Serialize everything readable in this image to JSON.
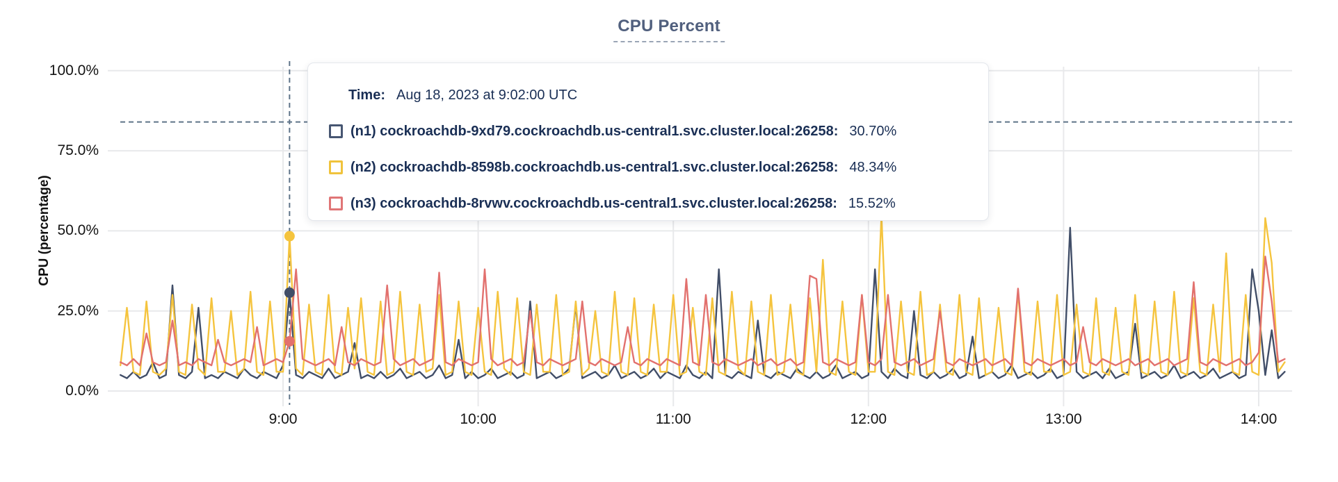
{
  "title": "CPU Percent",
  "chart_data": {
    "type": "line",
    "title": "CPU Percent",
    "xlabel": "",
    "ylabel": "CPU (percentage)",
    "ylim": [
      0,
      100
    ],
    "grid": true,
    "legend_position": "tooltip",
    "yticks": [
      {
        "label": "100.0%",
        "value": 100
      },
      {
        "label": "75.0%",
        "value": 75
      },
      {
        "label": "50.0%",
        "value": 50
      },
      {
        "label": "25.0%",
        "value": 25
      },
      {
        "label": "0.0%",
        "value": 0
      }
    ],
    "xticks": [
      {
        "label": "9:00",
        "t": 0
      },
      {
        "label": "10:00",
        "t": 60
      },
      {
        "label": "11:00",
        "t": 120
      },
      {
        "label": "12:00",
        "t": 180
      },
      {
        "label": "13:00",
        "t": 240
      },
      {
        "label": "14:00",
        "t": 300
      }
    ],
    "x_unit": "minutes from 9:00",
    "t_start": -50,
    "t_step": 2,
    "series": [
      {
        "id": "n1",
        "name": "(n1) cockroachdb-9xd79.cockroachdb.us-central1.svc.cluster.local:26258:",
        "color": "#414e68",
        "values": [
          5,
          4,
          6,
          4,
          5,
          9,
          4,
          5,
          33,
          5,
          4,
          6,
          26,
          4,
          5,
          4,
          6,
          5,
          4,
          7,
          5,
          4,
          6,
          5,
          4,
          8,
          30.7,
          5,
          4,
          6,
          5,
          4,
          7,
          4,
          5,
          6,
          15,
          4,
          5,
          4,
          6,
          4,
          5,
          7,
          4,
          5,
          6,
          4,
          5,
          8,
          4,
          5,
          16,
          4,
          6,
          4,
          5,
          7,
          4,
          5,
          6,
          4,
          5,
          28,
          4,
          5,
          6,
          4,
          5,
          7,
          27,
          4,
          5,
          6,
          4,
          5,
          8,
          4,
          5,
          6,
          4,
          5,
          7,
          4,
          6,
          5,
          4,
          8,
          5,
          4,
          6,
          4,
          38,
          5,
          4,
          6,
          5,
          4,
          22,
          5,
          4,
          6,
          5,
          4,
          7,
          5,
          4,
          6,
          4,
          5,
          8,
          4,
          5,
          6,
          4,
          5,
          38,
          6,
          4,
          7,
          5,
          4,
          25,
          5,
          4,
          6,
          4,
          5,
          7,
          4,
          5,
          17,
          4,
          5,
          6,
          4,
          5,
          8,
          4,
          5,
          6,
          4,
          5,
          7,
          4,
          5,
          51,
          6,
          4,
          5,
          6,
          4,
          7,
          4,
          5,
          6,
          21,
          4,
          5,
          6,
          4,
          5,
          8,
          4,
          5,
          6,
          4,
          5,
          7,
          4,
          5,
          6,
          4,
          5,
          38,
          25,
          5,
          19,
          4,
          6
        ]
      },
      {
        "id": "n2",
        "name": "(n2) cockroachdb-8598b.cockroachdb.us-central1.svc.cluster.local:26258:",
        "color": "#f5c43e",
        "values": [
          8,
          26,
          6,
          5,
          28,
          6,
          5,
          7,
          30,
          6,
          5,
          27,
          7,
          5,
          29,
          6,
          6,
          25,
          5,
          7,
          31,
          6,
          5,
          28,
          6,
          6,
          48.34,
          7,
          5,
          27,
          6,
          5,
          30,
          6,
          5,
          26,
          7,
          29,
          6,
          5,
          28,
          5,
          6,
          31,
          6,
          5,
          27,
          6,
          7,
          30,
          5,
          6,
          28,
          6,
          5,
          26,
          6,
          5,
          31,
          7,
          5,
          29,
          6,
          5,
          27,
          6,
          6,
          30,
          5,
          6,
          28,
          5,
          7,
          25,
          6,
          5,
          31,
          6,
          5,
          29,
          6,
          5,
          27,
          6,
          6,
          30,
          5,
          6,
          26,
          6,
          5,
          29,
          6,
          5,
          31,
          7,
          5,
          28,
          6,
          5,
          30,
          5,
          6,
          27,
          6,
          5,
          29,
          6,
          41,
          6,
          5,
          28,
          6,
          5,
          30,
          6,
          6,
          55,
          6,
          5,
          28,
          6,
          5,
          31,
          5,
          6,
          27,
          6,
          5,
          30,
          6,
          5,
          29,
          5,
          6,
          26,
          6,
          5,
          31,
          6,
          5,
          28,
          6,
          6,
          30,
          5,
          6,
          27,
          6,
          5,
          29,
          6,
          5,
          26,
          6,
          5,
          30,
          6,
          5,
          28,
          6,
          5,
          31,
          6,
          5,
          29,
          6,
          5,
          27,
          6,
          43,
          6,
          5,
          30,
          6,
          5,
          54,
          40,
          6,
          9
        ]
      },
      {
        "id": "n3",
        "name": "(n3) cockroachdb-8rvwv.cockroachdb.us-central1.svc.cluster.local:26258:",
        "color": "#e2716e",
        "values": [
          9,
          8,
          10,
          8,
          18,
          9,
          8,
          9,
          22,
          8,
          9,
          8,
          10,
          9,
          8,
          16,
          9,
          8,
          9,
          10,
          9,
          20,
          8,
          9,
          10,
          9,
          15.52,
          38,
          10,
          9,
          8,
          9,
          10,
          8,
          20,
          9,
          8,
          10,
          9,
          8,
          9,
          33,
          10,
          8,
          9,
          10,
          8,
          9,
          10,
          37,
          9,
          8,
          10,
          9,
          8,
          9,
          38,
          10,
          8,
          9,
          10,
          8,
          9,
          25,
          9,
          8,
          10,
          9,
          8,
          9,
          10,
          28,
          9,
          8,
          10,
          9,
          8,
          9,
          20,
          9,
          8,
          10,
          9,
          8,
          10,
          9,
          8,
          35,
          9,
          8,
          30,
          9,
          8,
          10,
          9,
          8,
          9,
          10,
          8,
          9,
          10,
          8,
          9,
          10,
          8,
          9,
          36,
          35,
          9,
          8,
          10,
          9,
          8,
          9,
          30,
          9,
          8,
          10,
          30,
          9,
          8,
          9,
          10,
          8,
          9,
          10,
          25,
          9,
          8,
          10,
          9,
          8,
          9,
          10,
          8,
          9,
          10,
          8,
          32,
          9,
          8,
          10,
          9,
          8,
          9,
          10,
          8,
          9,
          20,
          9,
          8,
          10,
          9,
          8,
          9,
          10,
          8,
          9,
          10,
          8,
          9,
          10,
          8,
          9,
          10,
          34,
          9,
          8,
          10,
          9,
          8,
          9,
          10,
          8,
          9,
          12,
          42,
          28,
          9,
          10
        ]
      }
    ]
  },
  "crosshair": {
    "t": 2,
    "cursor_percent": 84,
    "color": "#5e7388"
  },
  "tooltip": {
    "time_label": "Time:",
    "time_value": "Aug 18, 2023 at 9:02:00 UTC",
    "rows": [
      {
        "name": "(n1) cockroachdb-9xd79.cockroachdb.us-central1.svc.cluster.local:26258:",
        "value": "30.70%",
        "color": "#475672"
      },
      {
        "name": "(n2) cockroachdb-8598b.cockroachdb.us-central1.svc.cluster.local:26258:",
        "value": "48.34%",
        "color": "#f0c33c"
      },
      {
        "name": "(n3) cockroachdb-8rvwv.cockroachdb.us-central1.svc.cluster.local:26258:",
        "value": "15.52%",
        "color": "#e07576"
      }
    ]
  },
  "colors": {
    "grid": "#e8e9eb",
    "title": "#51607e",
    "axis_text": "#141414",
    "tooltip_text": "#1a2f55"
  }
}
